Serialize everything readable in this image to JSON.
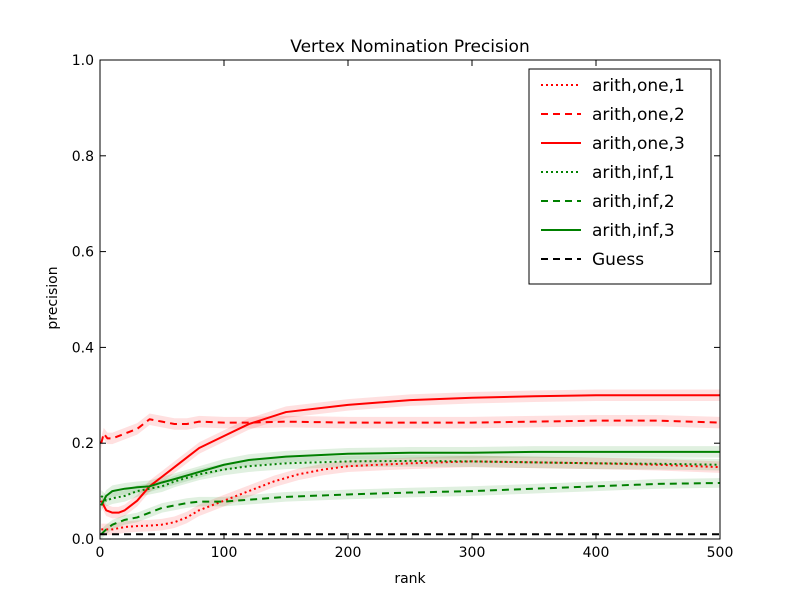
{
  "chart_data": {
    "type": "line",
    "title": "Vertex Nomination Precision",
    "xlabel": "rank",
    "ylabel": "precision",
    "xlim": [
      0,
      500
    ],
    "ylim": [
      0.0,
      1.0
    ],
    "xticks": [
      0,
      100,
      200,
      300,
      400,
      500
    ],
    "yticks": [
      0.0,
      0.2,
      0.4,
      0.6,
      0.8,
      1.0
    ],
    "xtick_labels": [
      "0",
      "100",
      "200",
      "300",
      "400",
      "500"
    ],
    "ytick_labels": [
      "0.0",
      "0.2",
      "0.4",
      "0.6",
      "0.8",
      "1.0"
    ],
    "grid": false,
    "legend_position": "top-right",
    "series": [
      {
        "name": "arith,one,1",
        "color": "#ff0000",
        "style": "dotted",
        "band": 0.012,
        "x": [
          1,
          5,
          10,
          20,
          30,
          40,
          50,
          60,
          70,
          80,
          90,
          100,
          120,
          140,
          160,
          180,
          200,
          250,
          300,
          350,
          400,
          450,
          500
        ],
        "y": [
          0.02,
          0.02,
          0.02,
          0.025,
          0.027,
          0.028,
          0.03,
          0.035,
          0.045,
          0.06,
          0.07,
          0.08,
          0.1,
          0.12,
          0.135,
          0.145,
          0.152,
          0.158,
          0.162,
          0.16,
          0.158,
          0.155,
          0.15
        ]
      },
      {
        "name": "arith,one,2",
        "color": "#ff0000",
        "style": "dashed",
        "band": 0.012,
        "x": [
          1,
          3,
          6,
          10,
          20,
          30,
          40,
          50,
          60,
          70,
          80,
          100,
          120,
          150,
          200,
          250,
          300,
          350,
          400,
          450,
          500
        ],
        "y": [
          0.2,
          0.22,
          0.21,
          0.21,
          0.22,
          0.23,
          0.25,
          0.245,
          0.24,
          0.24,
          0.245,
          0.243,
          0.243,
          0.245,
          0.243,
          0.243,
          0.243,
          0.245,
          0.247,
          0.247,
          0.243
        ]
      },
      {
        "name": "arith,one,3",
        "color": "#ff0000",
        "style": "solid",
        "band": 0.012,
        "x": [
          1,
          5,
          10,
          15,
          20,
          30,
          40,
          50,
          60,
          70,
          80,
          100,
          120,
          150,
          200,
          250,
          300,
          350,
          400,
          450,
          500
        ],
        "y": [
          0.08,
          0.06,
          0.055,
          0.055,
          0.06,
          0.08,
          0.11,
          0.13,
          0.15,
          0.17,
          0.19,
          0.215,
          0.24,
          0.265,
          0.28,
          0.29,
          0.295,
          0.298,
          0.3,
          0.3,
          0.3
        ]
      },
      {
        "name": "arith,inf,1",
        "color": "#008000",
        "style": "dotted",
        "band": 0.012,
        "x": [
          1,
          5,
          10,
          20,
          30,
          40,
          50,
          60,
          80,
          100,
          120,
          150,
          200,
          250,
          300,
          350,
          400,
          450,
          500
        ],
        "y": [
          0.09,
          0.08,
          0.085,
          0.09,
          0.1,
          0.105,
          0.11,
          0.12,
          0.135,
          0.145,
          0.152,
          0.158,
          0.162,
          0.163,
          0.162,
          0.16,
          0.158,
          0.157,
          0.155
        ]
      },
      {
        "name": "arith,inf,2",
        "color": "#008000",
        "style": "dashed",
        "band": 0.01,
        "x": [
          1,
          5,
          10,
          20,
          30,
          40,
          50,
          60,
          70,
          80,
          100,
          120,
          150,
          200,
          250,
          300,
          350,
          400,
          450,
          500
        ],
        "y": [
          0.01,
          0.02,
          0.03,
          0.04,
          0.045,
          0.055,
          0.065,
          0.07,
          0.075,
          0.078,
          0.078,
          0.082,
          0.088,
          0.093,
          0.097,
          0.1,
          0.105,
          0.11,
          0.115,
          0.117
        ]
      },
      {
        "name": "arith,inf,3",
        "color": "#008000",
        "style": "solid",
        "band": 0.012,
        "x": [
          1,
          3,
          5,
          10,
          20,
          30,
          40,
          50,
          60,
          80,
          100,
          120,
          150,
          200,
          250,
          300,
          350,
          400,
          450,
          500
        ],
        "y": [
          0.07,
          0.08,
          0.09,
          0.1,
          0.105,
          0.108,
          0.11,
          0.118,
          0.125,
          0.14,
          0.155,
          0.165,
          0.172,
          0.178,
          0.18,
          0.18,
          0.182,
          0.182,
          0.182,
          0.182
        ]
      },
      {
        "name": "Guess",
        "color": "#000000",
        "style": "dashed",
        "band": 0,
        "x": [
          0,
          500
        ],
        "y": [
          0.01,
          0.01
        ]
      }
    ]
  }
}
